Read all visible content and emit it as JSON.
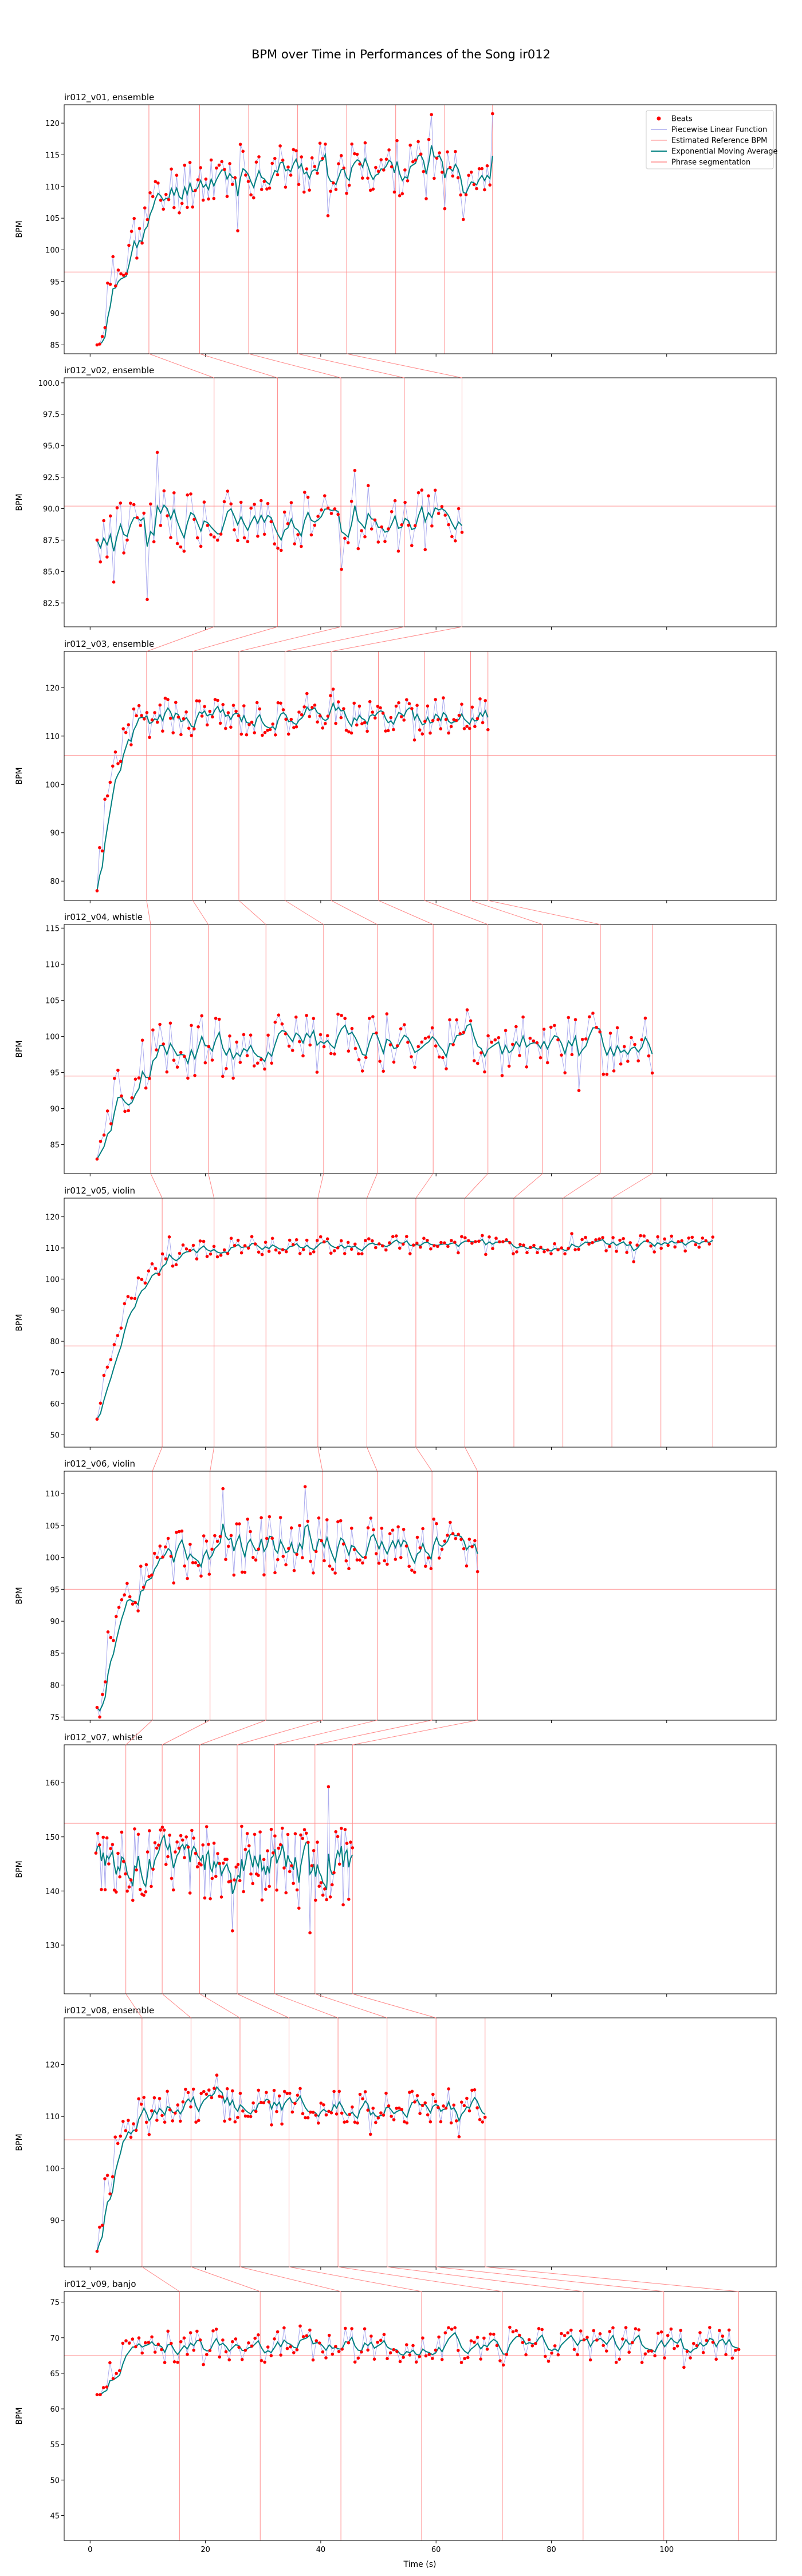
{
  "figure": {
    "title": "BPM over Time in Performances of the Song ir012",
    "xlabel": "Time (s)",
    "ylabel": "BPM"
  },
  "legend": {
    "placement": "top-right",
    "entries": [
      {
        "label": "Beats",
        "kind": "marker",
        "color": "#ff0000"
      },
      {
        "label": "Piecewise Linear Function",
        "kind": "line",
        "color": "#aaaaee"
      },
      {
        "label": "Estimated Reference BPM",
        "kind": "line",
        "color": "#ffaaaa"
      },
      {
        "label": "Exponential Moving Average",
        "kind": "line",
        "color": "#008080"
      },
      {
        "label": "Phrase segmentation",
        "kind": "line",
        "color": "#ff8888"
      }
    ]
  },
  "colors": {
    "beats": "#ff0000",
    "piecewise": "#aaaaee",
    "reference": "#ffaaaa",
    "ema": "#008080",
    "phrase": "#ff8888",
    "connector": "#ff8888"
  },
  "chart_data": [
    {
      "type": "scatter",
      "title": "ir012_v01, ensemble",
      "xlim": [
        -4.5,
        119
      ],
      "ylim": [
        83.6,
        122.9
      ],
      "yticks": [
        85,
        90,
        95,
        100,
        105,
        110,
        115,
        120
      ],
      "ref_bpm": 96.5,
      "phrases": [
        10.2,
        19.0,
        27.5,
        36.0,
        44.5,
        53.0,
        61.5,
        69.8
      ],
      "t_start": 1.2,
      "t_end": 69.8,
      "n": 150,
      "start_bpm": 85,
      "plateau": 113,
      "rise": 14,
      "noise": 4.5,
      "seed": 11
    },
    {
      "type": "scatter",
      "title": "ir012_v02, ensemble",
      "xlim": [
        -4.5,
        119
      ],
      "ylim": [
        80.6,
        100.4
      ],
      "yticks": [
        82.5,
        85.0,
        87.5,
        90.0,
        92.5,
        95.0,
        97.5,
        100.0
      ],
      "ref_bpm": 90.2,
      "phrases": [
        21.5,
        32.5,
        43.5,
        54.5,
        64.5
      ],
      "t_start": 1.2,
      "t_end": 64.5,
      "n": 110,
      "start_bpm": 87.5,
      "plateau": 89.0,
      "rise": 3,
      "noise": 2.5,
      "seed": 22
    },
    {
      "type": "scatter",
      "title": "ir012_v03, ensemble",
      "xlim": [
        -4.5,
        119
      ],
      "ylim": [
        76.0,
        127.5
      ],
      "yticks": [
        80,
        90,
        100,
        110,
        120
      ],
      "ref_bpm": 106,
      "phrases": [
        9.8,
        17.8,
        25.8,
        33.8,
        41.8,
        50.0,
        58.0,
        66.0,
        69.0
      ],
      "t_start": 1.2,
      "t_end": 69.0,
      "n": 150,
      "start_bpm": 78,
      "plateau": 114,
      "rise": 5,
      "noise": 4.0,
      "seed": 33
    },
    {
      "type": "scatter",
      "title": "ir012_v04, whistle",
      "xlim": [
        -4.5,
        119
      ],
      "ylim": [
        81.0,
        115.5
      ],
      "yticks": [
        85,
        90,
        95,
        100,
        105,
        110,
        115
      ],
      "ref_bpm": 94.5,
      "phrases": [
        10.5,
        20.5,
        30.5,
        40.5,
        49.8,
        59.5,
        69.0,
        78.5,
        88.5,
        97.5
      ],
      "t_start": 1.2,
      "t_end": 97.5,
      "n": 160,
      "start_bpm": 83,
      "plateau": 99,
      "rise": 10,
      "noise": 4.5,
      "seed": 44
    },
    {
      "type": "scatter",
      "title": "ir012_v05, violin",
      "xlim": [
        -4.5,
        119
      ],
      "ylim": [
        46.0,
        126.0
      ],
      "yticks": [
        50,
        60,
        70,
        80,
        90,
        100,
        110,
        120
      ],
      "ref_bpm": 78.5,
      "phrases": [
        12.5,
        21.5,
        30.5,
        39.5,
        48.0,
        56.5,
        65.0,
        73.5,
        82.0,
        90.5,
        99.0,
        108.0
      ],
      "t_start": 1.2,
      "t_end": 108.0,
      "n": 180,
      "start_bpm": 55,
      "plateau": 111,
      "rise": 11,
      "noise": 3.0,
      "seed": 55
    },
    {
      "type": "scatter",
      "title": "ir012_v06, violin",
      "xlim": [
        -4.5,
        119
      ],
      "ylim": [
        74.5,
        113.5
      ],
      "yticks": [
        75,
        80,
        85,
        90,
        95,
        100,
        105,
        110
      ],
      "ref_bpm": 95,
      "phrases": [
        10.8,
        20.8,
        30.5,
        40.3,
        49.8,
        59.3,
        67.2
      ],
      "t_start": 1.2,
      "t_end": 67.2,
      "n": 140,
      "start_bpm": 76.5,
      "plateau": 102,
      "rise": 12,
      "noise": 4.5,
      "seed": 66
    },
    {
      "type": "scatter",
      "title": "ir012_v07, whistle",
      "xlim": [
        -4.5,
        119
      ],
      "ylim": [
        121.0,
        167.0
      ],
      "yticks": [
        130,
        140,
        150,
        160
      ],
      "ref_bpm": 152.5,
      "phrases": [
        6.2,
        12.5,
        19.0,
        25.5,
        32.0,
        39.0,
        45.5
      ],
      "t_start": 1.0,
      "t_end": 45.5,
      "n": 140,
      "start_bpm": 147,
      "plateau": 145,
      "rise": 2,
      "noise": 7.0,
      "seed": 77
    },
    {
      "type": "scatter",
      "title": "ir012_v08, ensemble",
      "xlim": [
        -4.5,
        119
      ],
      "ylim": [
        81.0,
        129.0
      ],
      "yticks": [
        90,
        100,
        110,
        120
      ],
      "ref_bpm": 105.5,
      "phrases": [
        9.0,
        17.5,
        26.0,
        34.5,
        43.0,
        51.5,
        60.0,
        68.5
      ],
      "t_start": 1.2,
      "t_end": 68.5,
      "n": 150,
      "start_bpm": 84,
      "plateau": 112,
      "rise": 6,
      "noise": 3.5,
      "seed": 88
    },
    {
      "type": "scatter",
      "title": "ir012_v09, banjo",
      "xlim": [
        -4.5,
        119
      ],
      "ylim": [
        41.5,
        76.5
      ],
      "yticks": [
        45,
        50,
        55,
        60,
        65,
        70,
        75
      ],
      "ref_bpm": 67.5,
      "phrases": [
        15.5,
        29.5,
        43.5,
        57.5,
        71.5,
        85.5,
        99.5,
        112.5
      ],
      "t_start": 1.2,
      "t_end": 112.5,
      "n": 200,
      "start_bpm": 62,
      "plateau": 69,
      "rise": 8,
      "noise": 2.5,
      "seed": 99
    }
  ],
  "xaxis": {
    "ticks": [
      0,
      20,
      40,
      60,
      80,
      100
    ]
  }
}
